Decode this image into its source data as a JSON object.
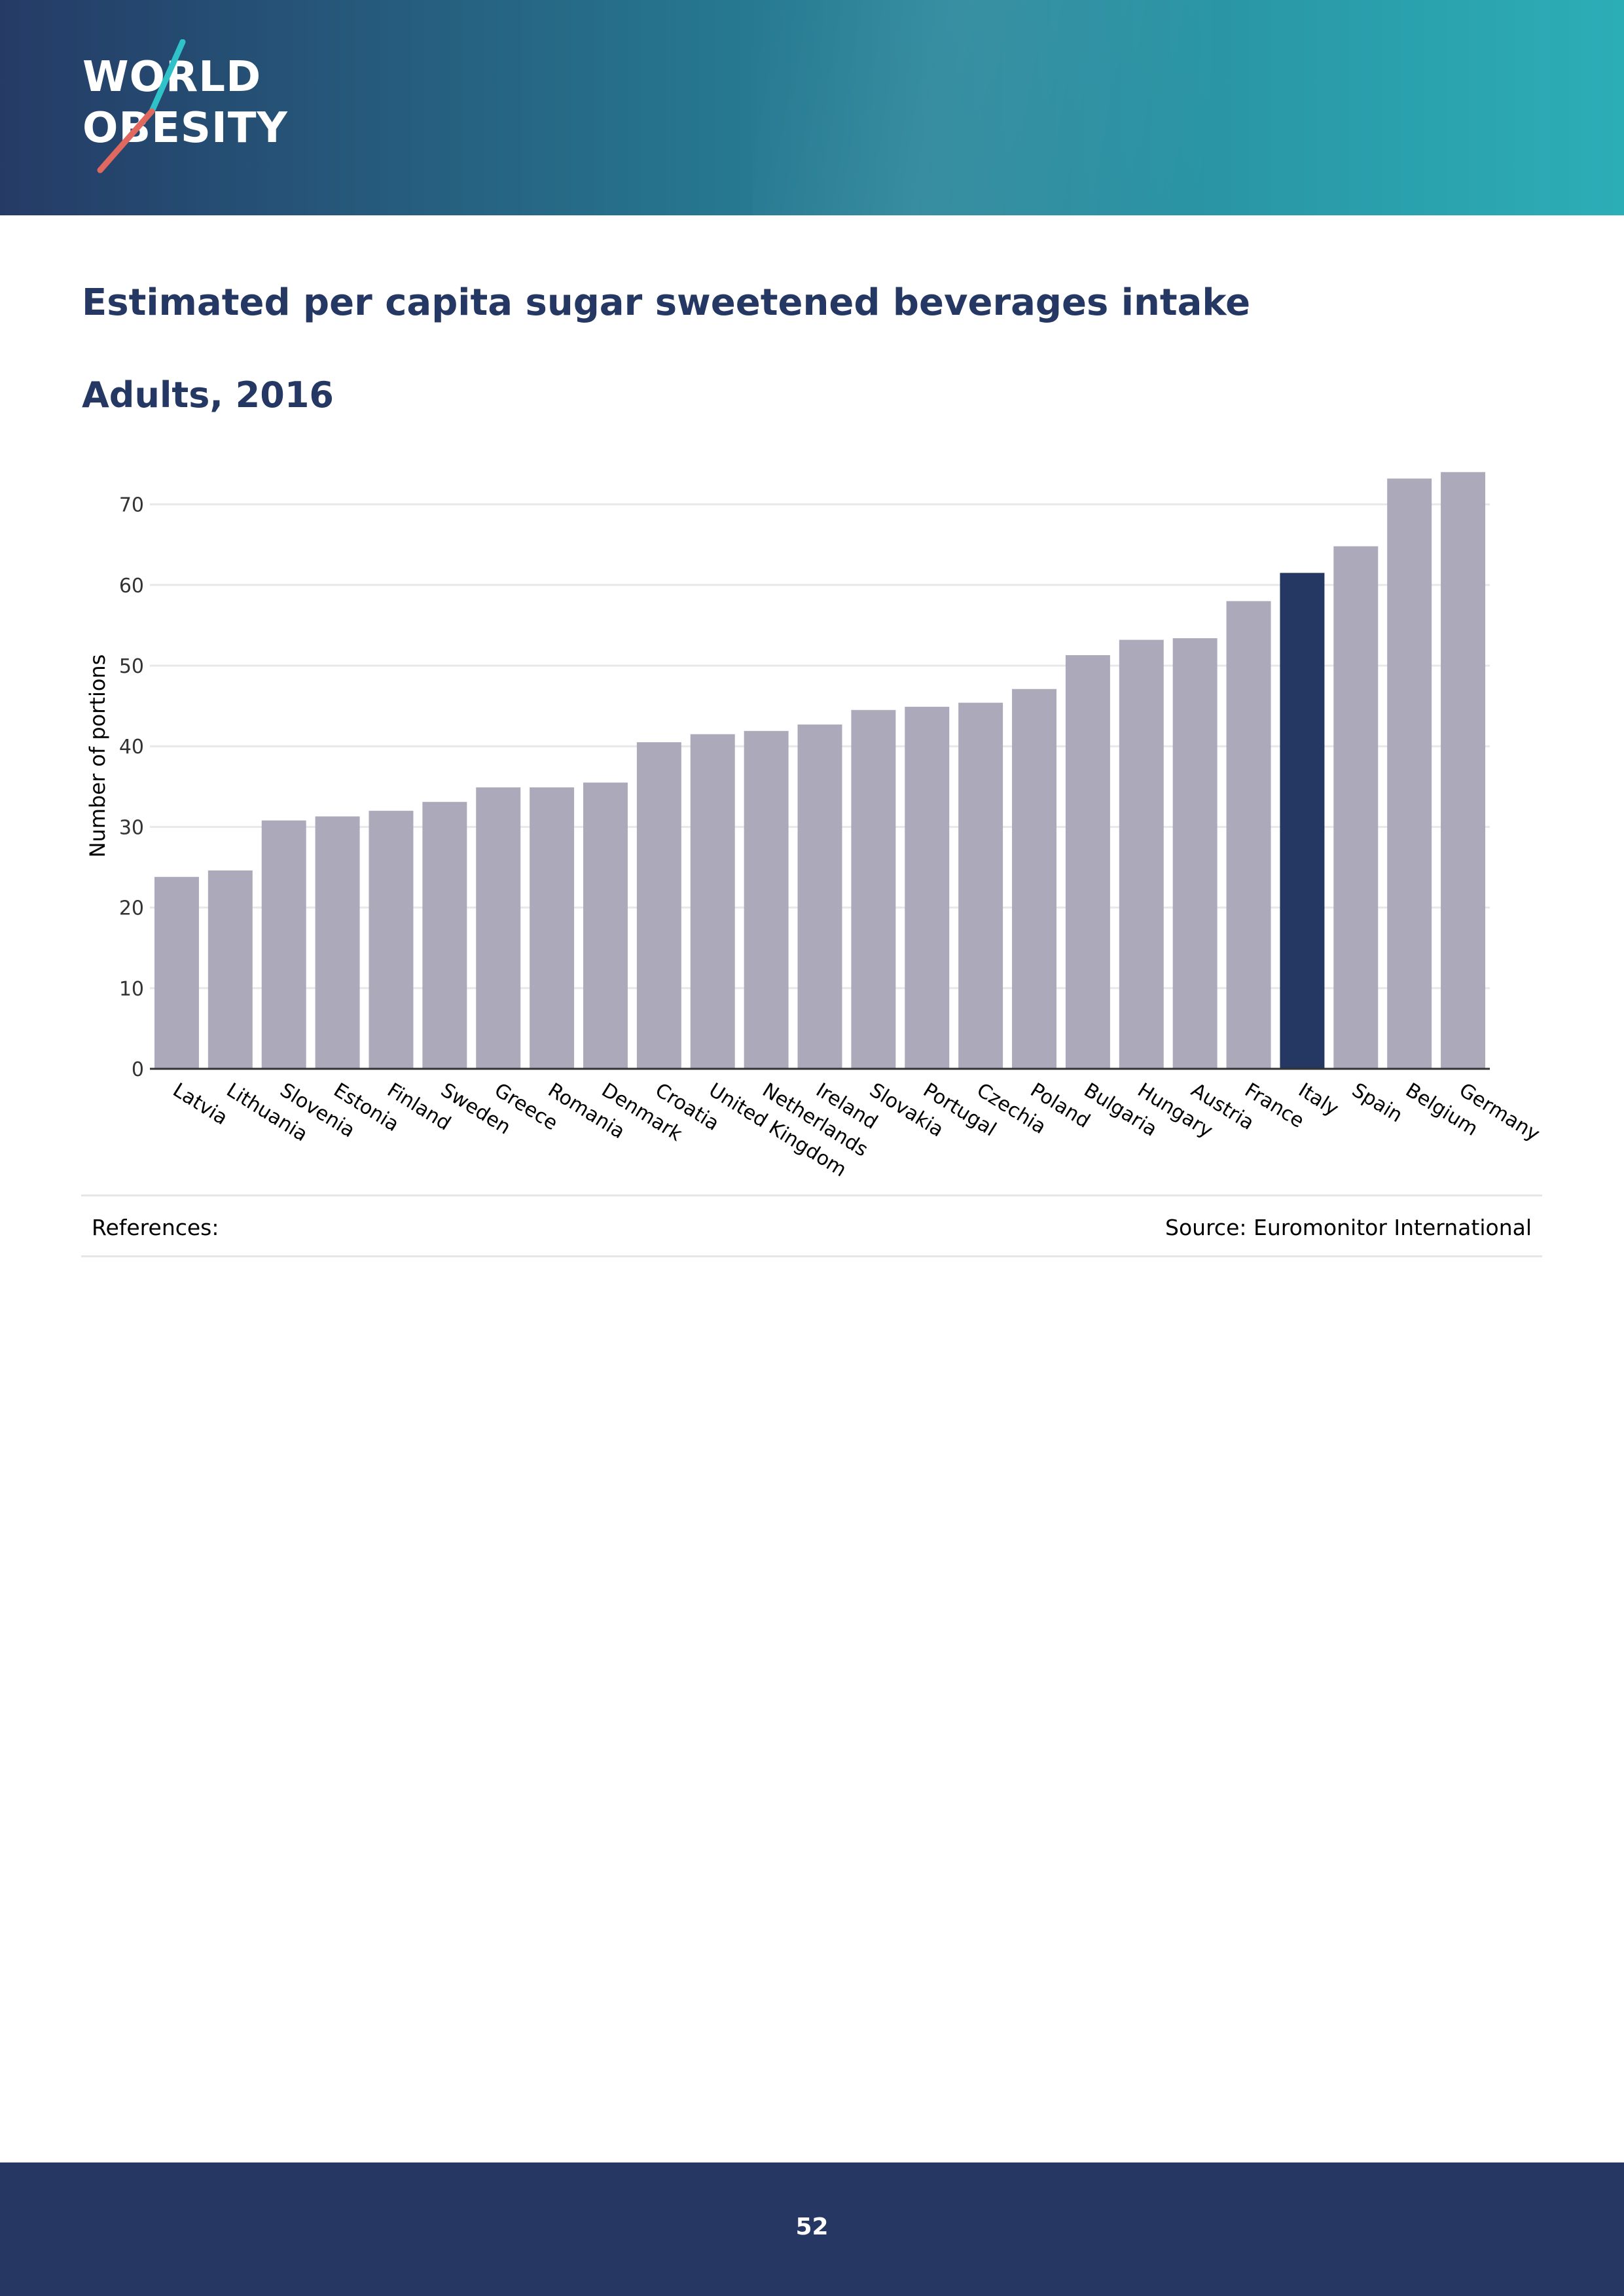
{
  "header": {
    "logo_line1": "WORLD",
    "logo_line2": "OBESITY",
    "colors": {
      "gradient_start": "#253b66",
      "gradient_end": "#2caeb7",
      "slash_teal": "#2fc2c9",
      "slash_coral": "#e0685f"
    }
  },
  "title": "Estimated per capita sugar sweetened beverages intake",
  "subtitle": "Adults, 2016",
  "chart_data": {
    "type": "bar",
    "title": "Estimated per capita sugar sweetened beverages intake",
    "xlabel": "",
    "ylabel": "Number of portions",
    "ylim": [
      0,
      75
    ],
    "yticks": [
      0,
      10,
      20,
      30,
      40,
      50,
      60,
      70
    ],
    "grid": true,
    "categories": [
      "Latvia",
      "Lithuania",
      "Slovenia",
      "Estonia",
      "Finland",
      "Sweden",
      "Greece",
      "Romania",
      "Denmark",
      "Croatia",
      "United Kingdom",
      "Netherlands",
      "Ireland",
      "Slovakia",
      "Portugal",
      "Czechia",
      "Poland",
      "Bulgaria",
      "Hungary",
      "Austria",
      "France",
      "Italy",
      "Spain",
      "Belgium",
      "Germany"
    ],
    "values": [
      23.8,
      24.6,
      30.8,
      31.3,
      32.0,
      33.1,
      34.9,
      34.9,
      35.5,
      40.5,
      41.5,
      41.9,
      42.7,
      44.5,
      44.9,
      45.4,
      47.1,
      51.3,
      53.2,
      53.4,
      58.0,
      61.5,
      64.8,
      73.2,
      74.0
    ],
    "highlight": "Italy",
    "colors": {
      "bar": "#aca9bb",
      "highlight": "#253863",
      "grid": "#e8e8e8",
      "axis": "#333333"
    }
  },
  "references": {
    "label": "References:",
    "source": "Source: Euromonitor International"
  },
  "footer": {
    "page_number": "52"
  }
}
